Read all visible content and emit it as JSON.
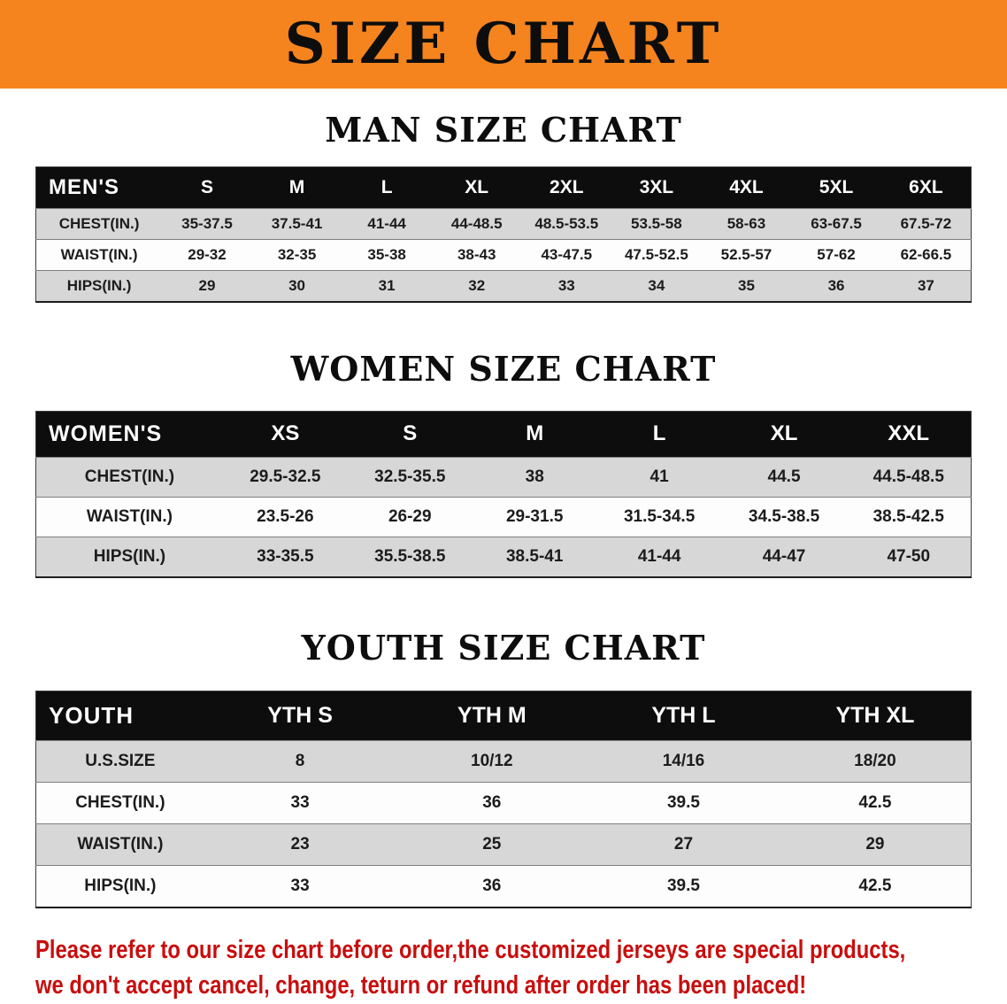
{
  "banner": {
    "title": "SIZE CHART"
  },
  "colors": {
    "banner-bg": "#f5831e",
    "table-header-bg": "#0d0d0d",
    "stripe": "#d7d7d7",
    "disclaimer-red": "#c90d0d"
  },
  "sections": [
    {
      "heading": "MAN SIZE CHART",
      "corner_label": "MEN'S",
      "columns": [
        "S",
        "M",
        "L",
        "XL",
        "2XL",
        "3XL",
        "4XL",
        "5XL",
        "6XL"
      ],
      "rows": [
        {
          "label": "CHEST(IN.)",
          "values": [
            "35-37.5",
            "37.5-41",
            "41-44",
            "44-48.5",
            "48.5-53.5",
            "53.5-58",
            "58-63",
            "63-67.5",
            "67.5-72"
          ]
        },
        {
          "label": "WAIST(IN.)",
          "values": [
            "29-32",
            "32-35",
            "35-38",
            "38-43",
            "43-47.5",
            "47.5-52.5",
            "52.5-57",
            "57-62",
            "62-66.5"
          ]
        },
        {
          "label": "HIPS(IN.)",
          "values": [
            "29",
            "30",
            "31",
            "32",
            "33",
            "34",
            "35",
            "36",
            "37"
          ]
        }
      ]
    },
    {
      "heading": "WOMEN SIZE CHART",
      "corner_label": "WOMEN'S",
      "columns": [
        "XS",
        "S",
        "M",
        "L",
        "XL",
        "XXL"
      ],
      "rows": [
        {
          "label": "CHEST(IN.)",
          "values": [
            "29.5-32.5",
            "32.5-35.5",
            "38",
            "41",
            "44.5",
            "44.5-48.5"
          ]
        },
        {
          "label": "WAIST(IN.)",
          "values": [
            "23.5-26",
            "26-29",
            "29-31.5",
            "31.5-34.5",
            "34.5-38.5",
            "38.5-42.5"
          ]
        },
        {
          "label": "HIPS(IN.)",
          "values": [
            "33-35.5",
            "35.5-38.5",
            "38.5-41",
            "41-44",
            "44-47",
            "47-50"
          ]
        }
      ]
    },
    {
      "heading": "YOUTH SIZE CHART",
      "corner_label": "YOUTH",
      "columns": [
        "YTH S",
        "YTH M",
        "YTH L",
        "YTH XL"
      ],
      "rows": [
        {
          "label": "U.S.SIZE",
          "values": [
            "8",
            "10/12",
            "14/16",
            "18/20"
          ]
        },
        {
          "label": "CHEST(IN.)",
          "values": [
            "33",
            "36",
            "39.5",
            "42.5"
          ]
        },
        {
          "label": "WAIST(IN.)",
          "values": [
            "23",
            "25",
            "27",
            "29"
          ]
        },
        {
          "label": "HIPS(IN.)",
          "values": [
            "33",
            "36",
            "39.5",
            "42.5"
          ]
        }
      ]
    }
  ],
  "disclaimer": {
    "line1": "Please refer to our size chart before order,the customized jerseys are special products,",
    "line2": "we don't accept cancel, change, teturn or refund after order has been placed!"
  }
}
